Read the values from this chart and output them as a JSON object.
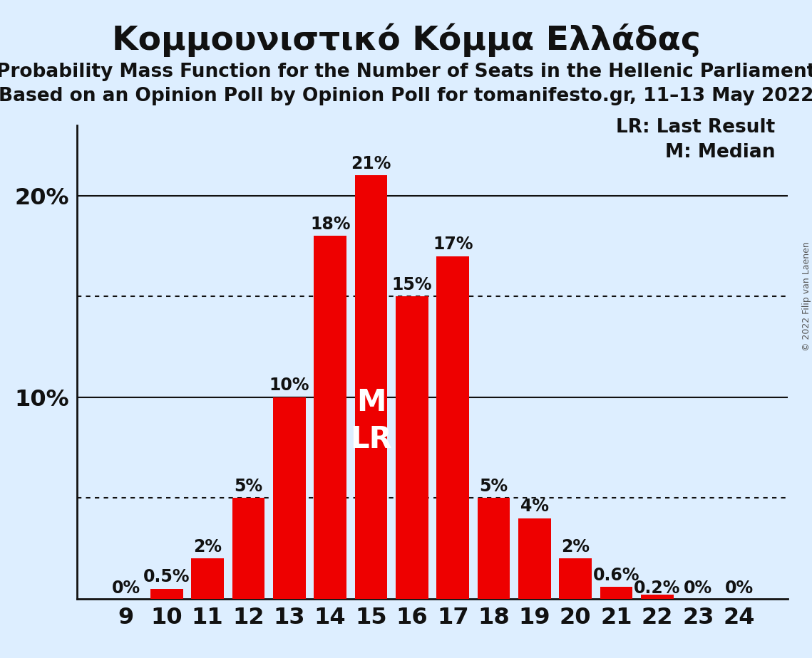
{
  "title": "Κομμουνιστικό Κόμμα Ελλάδας",
  "subtitle1": "Probability Mass Function for the Number of Seats in the Hellenic Parliament",
  "subtitle2": "Based on an Opinion Poll by Opinion Poll for tomanifesto.gr, 11–13 May 2022",
  "copyright": "© 2022 Filip van Laenen",
  "categories": [
    9,
    10,
    11,
    12,
    13,
    14,
    15,
    16,
    17,
    18,
    19,
    20,
    21,
    22,
    23,
    24
  ],
  "values": [
    0.0,
    0.5,
    2.0,
    5.0,
    10.0,
    18.0,
    21.0,
    15.0,
    17.0,
    5.0,
    4.0,
    2.0,
    0.6,
    0.2,
    0.0,
    0.0
  ],
  "bar_color": "#ee0000",
  "background_color": "#ddeeff",
  "bar_label_color_outside": "#111111",
  "bar_label_color_inside": "#ffffff",
  "median_bar": 15,
  "lr_bar": 15,
  "legend_lr": "LR: Last Result",
  "legend_m": "M: Median",
  "yticks": [
    10,
    20
  ],
  "ymax": 23.5,
  "dotted_lines": [
    5.0,
    15.0
  ],
  "solid_lines": [
    10.0,
    20.0
  ],
  "title_fontsize": 34,
  "subtitle_fontsize": 19,
  "bar_label_fontsize": 17,
  "tick_fontsize": 23,
  "legend_fontsize": 19,
  "ml_fontsize": 30,
  "copyright_fontsize": 9
}
